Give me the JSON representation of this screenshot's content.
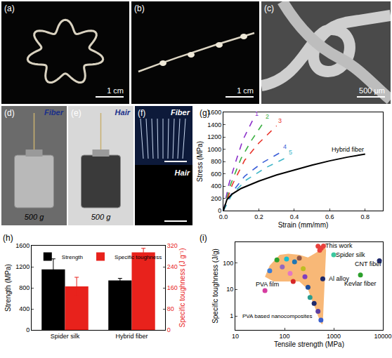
{
  "image_panels": [
    {
      "label": "(a)",
      "scale_bar": "1 cm"
    },
    {
      "label": "(b)",
      "scale_bar": "1 cm"
    },
    {
      "label": "(c)",
      "scale_bar": "500 μm"
    },
    {
      "label": "(d)",
      "caption": "Fiber",
      "load": "500 g"
    },
    {
      "label": "(e)",
      "caption": "Hair",
      "load": "500 g"
    },
    {
      "label": "(f)",
      "captions": [
        "Fiber",
        "Hair"
      ]
    }
  ],
  "chart_data": [
    {
      "panel": "(g)",
      "type": "line",
      "x_label": "Strain (mm/mm)",
      "y_label": "Stress (MPa)",
      "xlim": [
        0,
        0.9
      ],
      "xticks": [
        {
          "value": 0,
          "label": "0.0"
        },
        {
          "value": 0.2,
          "label": "0.2"
        },
        {
          "value": 0.4,
          "label": "0.4"
        },
        {
          "value": 0.6,
          "label": "0.6"
        },
        {
          "value": 0.8,
          "label": "0.8"
        }
      ],
      "ylim": [
        0,
        1600
      ],
      "yticks": [
        0,
        200,
        400,
        600,
        800,
        1000,
        1200,
        1400,
        1600
      ],
      "grid": false,
      "series": [
        {
          "name": "1",
          "color": "#8b2fc9",
          "line_style": "dash",
          "x": [
            0,
            0.03,
            0.07,
            0.11,
            0.17
          ],
          "values": [
            0,
            420,
            800,
            1150,
            1500
          ]
        },
        {
          "name": "2",
          "color": "#3cb043",
          "line_style": "dash",
          "x": [
            0,
            0.04,
            0.1,
            0.16,
            0.23
          ],
          "values": [
            0,
            420,
            850,
            1150,
            1450
          ]
        },
        {
          "name": "3",
          "color": "#e8342b",
          "line_style": "dash",
          "x": [
            0,
            0.05,
            0.12,
            0.2,
            0.3
          ],
          "values": [
            0,
            420,
            820,
            1100,
            1380
          ]
        },
        {
          "name": "4",
          "color": "#3c5fd8",
          "line_style": "dash",
          "x": [
            0,
            0.05,
            0.12,
            0.22,
            0.33
          ],
          "values": [
            0,
            300,
            560,
            780,
            960
          ]
        },
        {
          "name": "5",
          "color": "#3fb6c8",
          "line_style": "dash",
          "x": [
            0,
            0.05,
            0.13,
            0.24,
            0.36
          ],
          "values": [
            0,
            270,
            500,
            700,
            870
          ]
        },
        {
          "name": "Hybrid fiber",
          "color": "#000000",
          "line_style": "solid",
          "x": [
            0,
            0.02,
            0.05,
            0.1,
            0.2,
            0.3,
            0.4,
            0.5,
            0.6,
            0.7,
            0.8
          ],
          "values": [
            0,
            180,
            270,
            360,
            480,
            580,
            660,
            740,
            810,
            870,
            920
          ]
        }
      ]
    },
    {
      "panel": "(h)",
      "type": "bar",
      "categories": [
        "Spider silk",
        "Hybrid fiber"
      ],
      "y_label": "Strength (MPa)",
      "y2_label": "Specific toughness (J g⁻¹)",
      "ylim": [
        0,
        1600
      ],
      "yticks": [
        0,
        400,
        800,
        1200,
        1600
      ],
      "y2lim": [
        0,
        320
      ],
      "y2ticks": [
        0,
        80,
        160,
        240,
        320
      ],
      "legend": "top-left",
      "grid": false,
      "series": [
        {
          "name": "Strength",
          "color": "#000000",
          "values": [
            1150,
            940
          ],
          "errors": [
            200,
            40
          ]
        },
        {
          "name": "Specific toughness",
          "color": "#e8221c",
          "axis": "y2",
          "values": [
            165,
            295
          ],
          "errors": [
            35,
            15
          ]
        }
      ]
    },
    {
      "panel": "(i)",
      "type": "scatter",
      "log": true,
      "grid": false,
      "x_label": "Tensile strength (MPa)",
      "y_label": "Specific toughness (J/g)",
      "xlim": [
        10,
        10000
      ],
      "xticks": [
        10,
        100,
        1000,
        10000
      ],
      "ylim": [
        0.3,
        600
      ],
      "yticks": [
        1,
        10,
        100
      ],
      "region": {
        "color": "#f5a04a",
        "x": [
          40,
          50,
          80,
          120,
          200,
          300,
          450,
          650,
          700,
          600,
          560,
          480,
          420,
          360,
          300,
          200,
          120,
          60,
          40
        ],
        "y": [
          30,
          80,
          200,
          220,
          200,
          160,
          250,
          450,
          300,
          0.5,
          0.5,
          1,
          2,
          4,
          10,
          20,
          20,
          20,
          30
        ]
      },
      "series": [
        {
          "color": "#e8413c",
          "x": [
            480,
            560,
            620,
            520
          ],
          "values": [
            420,
            360,
            430,
            300
          ]
        },
        {
          "color": "#3cc8a0",
          "x": [
            1000
          ],
          "values": [
            200
          ]
        },
        {
          "color": "#1f2a6b",
          "x": [
            8500
          ],
          "values": [
            120
          ]
        },
        {
          "color": "#2ca02c",
          "x": [
            3500
          ],
          "values": [
            35
          ]
        },
        {
          "color": "#1f2a6b",
          "x": [
            600
          ],
          "values": [
            25
          ]
        },
        {
          "color": "#d63ca0",
          "x": [
            40
          ],
          "values": [
            9
          ]
        },
        {
          "colors": [
            "#3b7dd8",
            "#2ca02c",
            "#9467bd",
            "#17becf",
            "#e377c2",
            "#1f77b4",
            "#8c564b",
            "#bcbd22",
            "#7f3fbf",
            "#1f4e9c",
            "#2a9d8f",
            "#1f2a6b",
            "#5b3fa0",
            "#3a5fcd",
            "#d62728"
          ],
          "x": [
            50,
            70,
            90,
            110,
            130,
            160,
            200,
            240,
            260,
            300,
            330,
            400,
            480,
            550,
            150
          ],
          "values": [
            50,
            130,
            70,
            140,
            40,
            110,
            150,
            60,
            30,
            12,
            5,
            3,
            1.5,
            0.7,
            20
          ]
        }
      ],
      "labels": [
        {
          "text": "This work",
          "x": 1300,
          "y": 450
        },
        {
          "text": "Spider silk",
          "x": 2200,
          "y": 200
        },
        {
          "text": "CNT fiber",
          "x": 5000,
          "y": 90
        },
        {
          "text": "Kevlar fiber",
          "x": 3500,
          "y": 17
        },
        {
          "text": "Al alloy",
          "x": 1300,
          "y": 25
        },
        {
          "text": "PVA film",
          "x": 45,
          "y": 16
        },
        {
          "text": "PVA based nanocomposites",
          "x": 70,
          "y": 1
        }
      ]
    }
  ]
}
